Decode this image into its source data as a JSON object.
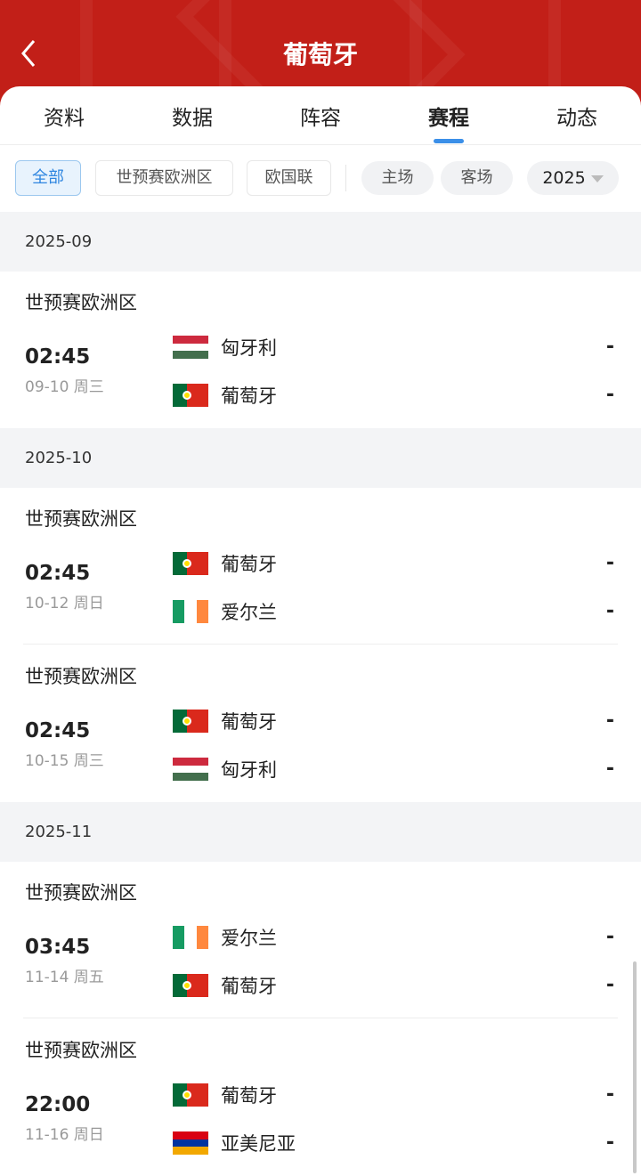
{
  "header": {
    "title": "葡萄牙",
    "back_icon": "chevron-left-icon",
    "bg_color": "#c21f18"
  },
  "tabs": [
    {
      "label": "资料"
    },
    {
      "label": "数据"
    },
    {
      "label": "阵容"
    },
    {
      "label": "赛程",
      "active": true
    },
    {
      "label": "动态"
    }
  ],
  "filters": {
    "competitions": [
      {
        "label": "全部",
        "selected": true
      },
      {
        "label": "世预赛欧洲区"
      },
      {
        "label": "欧国联"
      }
    ],
    "venue": [
      {
        "label": "主场"
      },
      {
        "label": "客场"
      }
    ],
    "year": "2025"
  },
  "accent_color": "#3b8fe8",
  "months": [
    {
      "label": "2025-09",
      "matches": [
        {
          "league": "世预赛欧洲区",
          "time": "02:45",
          "date": "09-10  周三",
          "home": {
            "name": "匈牙利",
            "flag": "hungary",
            "score": "-"
          },
          "away": {
            "name": "葡萄牙",
            "flag": "portugal",
            "score": "-"
          }
        }
      ]
    },
    {
      "label": "2025-10",
      "matches": [
        {
          "league": "世预赛欧洲区",
          "time": "02:45",
          "date": "10-12  周日",
          "home": {
            "name": "葡萄牙",
            "flag": "portugal",
            "score": "-"
          },
          "away": {
            "name": "爱尔兰",
            "flag": "ireland",
            "score": "-"
          }
        },
        {
          "league": "世预赛欧洲区",
          "time": "02:45",
          "date": "10-15  周三",
          "home": {
            "name": "葡萄牙",
            "flag": "portugal",
            "score": "-"
          },
          "away": {
            "name": "匈牙利",
            "flag": "hungary",
            "score": "-"
          }
        }
      ]
    },
    {
      "label": "2025-11",
      "matches": [
        {
          "league": "世预赛欧洲区",
          "time": "03:45",
          "date": "11-14  周五",
          "home": {
            "name": "爱尔兰",
            "flag": "ireland",
            "score": "-"
          },
          "away": {
            "name": "葡萄牙",
            "flag": "portugal",
            "score": "-"
          }
        },
        {
          "league": "世预赛欧洲区",
          "time": "22:00",
          "date": "11-16  周日",
          "home": {
            "name": "葡萄牙",
            "flag": "portugal",
            "score": "-"
          },
          "away": {
            "name": "亚美尼亚",
            "flag": "armenia",
            "score": "-"
          }
        }
      ]
    }
  ]
}
